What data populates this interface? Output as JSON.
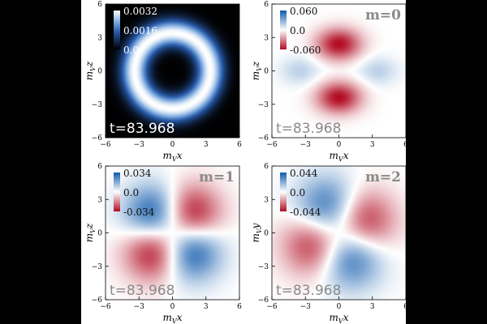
{
  "chart_data": [
    {
      "type": "heatmap",
      "panel_label": "",
      "time_label": "t=83.968",
      "colormap": "black-blue-white",
      "colorbar_ticks": [
        "0.0032",
        "0.0016",
        "0.0"
      ],
      "xlabel": "m_V x",
      "ylabel": "m_V z",
      "x_ticks": [
        -6,
        -3,
        0,
        3,
        6
      ],
      "y_ticks": [
        -6,
        -3,
        0,
        3,
        6
      ],
      "xlim": [
        -6,
        6
      ],
      "ylim": [
        -6,
        6
      ],
      "field": {
        "kind": "ring",
        "radius": 3.4,
        "width": 1.2,
        "max": 0.0032
      }
    },
    {
      "type": "heatmap",
      "panel_label": "m=0",
      "time_label": "t=83.968",
      "colormap": "red-white-blue",
      "colorbar_ticks": [
        "0.060",
        "0.0",
        "-0.060"
      ],
      "xlabel": "m_V x",
      "ylabel": "m_V z",
      "x_ticks": [
        -6,
        -3,
        0,
        3,
        6
      ],
      "y_ticks": [
        -6,
        -3,
        0,
        3,
        6
      ],
      "xlim": [
        -6,
        6
      ],
      "ylim": [
        -6,
        6
      ],
      "field": {
        "kind": "m0",
        "max": 0.06
      }
    },
    {
      "type": "heatmap",
      "panel_label": "m=1",
      "time_label": "t=83.968",
      "colormap": "red-white-blue",
      "colorbar_ticks": [
        "0.034",
        "0.0",
        "-0.034"
      ],
      "xlabel": "m_V x",
      "ylabel": "m_V z",
      "x_ticks": [
        -6,
        -3,
        0,
        3,
        6
      ],
      "y_ticks": [
        -6,
        -3,
        0,
        3,
        6
      ],
      "xlim": [
        -6,
        6
      ],
      "ylim": [
        -6,
        6
      ],
      "field": {
        "kind": "m1",
        "max": 0.034
      }
    },
    {
      "type": "heatmap",
      "panel_label": "m=2",
      "time_label": "t=83.968",
      "colormap": "red-white-blue",
      "colorbar_ticks": [
        "0.044",
        "0.0",
        "-0.044"
      ],
      "xlabel": "m_V x",
      "ylabel": "m_V y",
      "x_ticks": [
        -6,
        -3,
        0,
        3,
        6
      ],
      "y_ticks": [
        -6,
        -3,
        0,
        3,
        6
      ],
      "xlim": [
        -6,
        6
      ],
      "ylim": [
        -6,
        6
      ],
      "field": {
        "kind": "m2",
        "max": 0.044,
        "rotation_deg": 25
      }
    }
  ]
}
